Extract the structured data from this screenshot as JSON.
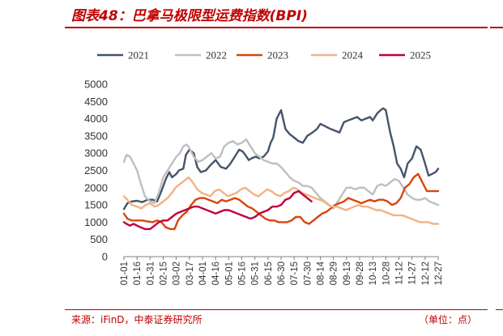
{
  "figure": {
    "title": "图表48：巴拿马极限型运费指数(BPI)",
    "source": "来源：iFinD，中泰证券研究所",
    "unit": "（单位：点）"
  },
  "chart_data": {
    "type": "line",
    "title": "",
    "xlabel": "",
    "ylabel": "",
    "ylim": [
      0,
      5000
    ],
    "yticks": [
      0,
      500,
      1000,
      1500,
      2000,
      2500,
      3000,
      3500,
      4000,
      4500,
      5000
    ],
    "grid": false,
    "legend_position": "top",
    "x_ticks": [
      "01-01",
      "01-16",
      "01-31",
      "02-15",
      "03-02",
      "03-17",
      "04-01",
      "04-16",
      "05-01",
      "05-16",
      "05-31",
      "06-15",
      "06-30",
      "07-15",
      "07-30",
      "08-14",
      "08-29",
      "09-13",
      "09-28",
      "10-13",
      "10-28",
      "11-12",
      "11-27",
      "12-12",
      "12-27"
    ],
    "series": [
      {
        "name": "2021",
        "color": "#44546a",
        "x": [
          "01-01",
          "01-05",
          "01-10",
          "01-16",
          "01-22",
          "01-28",
          "02-03",
          "02-08",
          "02-13",
          "02-18",
          "02-22",
          "02-25",
          "03-02",
          "03-05",
          "03-10",
          "03-13",
          "03-17",
          "03-22",
          "03-26",
          "03-30",
          "04-05",
          "04-10",
          "04-16",
          "04-22",
          "04-28",
          "05-03",
          "05-08",
          "05-13",
          "05-17",
          "05-20",
          "05-24",
          "05-27",
          "06-01",
          "06-05",
          "06-10",
          "06-15",
          "06-18",
          "06-21",
          "06-25",
          "06-30",
          "07-05",
          "07-10",
          "07-15",
          "07-20",
          "07-25",
          "07-30",
          "08-05",
          "08-10",
          "08-14",
          "08-18",
          "08-22",
          "08-26",
          "08-31",
          "09-05",
          "09-10",
          "09-15",
          "09-20",
          "09-25",
          "09-30",
          "10-05",
          "10-10",
          "10-13",
          "10-18",
          "10-22",
          "10-25",
          "10-28",
          "11-02",
          "11-06",
          "11-10",
          "11-14",
          "11-18",
          "11-22",
          "11-27",
          "12-02",
          "12-07",
          "12-12",
          "12-16",
          "12-20",
          "12-24",
          "12-27"
        ],
        "values": [
          1380,
          1550,
          1600,
          1620,
          1580,
          1650,
          1650,
          1600,
          1900,
          2250,
          2450,
          2300,
          2400,
          2500,
          2550,
          2950,
          3100,
          3000,
          2600,
          2450,
          2500,
          2650,
          2800,
          2600,
          2550,
          2700,
          2900,
          3100,
          3050,
          2950,
          2800,
          2850,
          2900,
          2850,
          2900,
          3050,
          3300,
          3450,
          4000,
          4250,
          3700,
          3550,
          3450,
          3350,
          3300,
          3500,
          3600,
          3700,
          3850,
          3800,
          3750,
          3700,
          3650,
          3600,
          3900,
          3950,
          4000,
          4050,
          3950,
          4000,
          4050,
          3950,
          4150,
          4250,
          4300,
          4250,
          3600,
          3200,
          2700,
          2550,
          2300,
          2700,
          2850,
          3200,
          3100,
          2700,
          2350,
          2400,
          2450,
          2550
        ]
      },
      {
        "name": "2022",
        "color": "#bfbfbf",
        "x": [
          "01-01",
          "01-04",
          "01-08",
          "01-12",
          "01-16",
          "01-20",
          "01-25",
          "01-31",
          "02-05",
          "02-10",
          "02-15",
          "02-20",
          "02-25",
          "03-02",
          "03-06",
          "03-10",
          "03-14",
          "03-17",
          "03-22",
          "03-27",
          "04-01",
          "04-06",
          "04-11",
          "04-16",
          "04-21",
          "04-26",
          "05-01",
          "05-06",
          "05-11",
          "05-16",
          "05-21",
          "05-26",
          "05-31",
          "06-05",
          "06-10",
          "06-15",
          "06-20",
          "06-25",
          "06-30",
          "07-05",
          "07-10",
          "07-15",
          "07-20",
          "07-25",
          "07-30",
          "08-04",
          "08-09",
          "08-14",
          "08-19",
          "08-24",
          "08-29",
          "09-03",
          "09-08",
          "09-13",
          "09-18",
          "09-23",
          "09-28",
          "10-03",
          "10-08",
          "10-13",
          "10-18",
          "10-23",
          "10-28",
          "11-02",
          "11-07",
          "11-12",
          "11-17",
          "11-22",
          "11-27",
          "12-02",
          "12-07",
          "12-12",
          "12-17",
          "12-22",
          "12-27"
        ],
        "values": [
          2750,
          2950,
          2900,
          2700,
          2500,
          2150,
          1750,
          1600,
          1550,
          1850,
          2300,
          2500,
          2700,
          2900,
          3000,
          3200,
          3250,
          3150,
          2900,
          2750,
          2800,
          2900,
          3000,
          2850,
          2900,
          3200,
          3300,
          3350,
          3250,
          3300,
          3400,
          3200,
          3000,
          2900,
          2800,
          2750,
          2700,
          2700,
          2600,
          2450,
          2300,
          2200,
          2150,
          2050,
          2050,
          2000,
          1850,
          1700,
          1600,
          1500,
          1400,
          1600,
          1800,
          2000,
          2000,
          1950,
          2000,
          2000,
          1900,
          1800,
          2050,
          2100,
          2050,
          2150,
          2250,
          2200,
          2000,
          1800,
          1700,
          1650,
          1650,
          1700,
          1600,
          1550,
          1500
        ]
      },
      {
        "name": "2023",
        "color": "#d9450f",
        "x": [
          "01-01",
          "01-05",
          "01-10",
          "01-16",
          "01-22",
          "01-28",
          "02-03",
          "02-08",
          "02-13",
          "02-18",
          "02-23",
          "02-28",
          "03-04",
          "03-09",
          "03-14",
          "03-19",
          "03-24",
          "03-29",
          "04-03",
          "04-08",
          "04-13",
          "04-18",
          "04-23",
          "04-28",
          "05-03",
          "05-08",
          "05-13",
          "05-18",
          "05-23",
          "05-28",
          "06-02",
          "06-07",
          "06-12",
          "06-17",
          "06-22",
          "06-27",
          "07-02",
          "07-07",
          "07-12",
          "07-17",
          "07-22",
          "07-27",
          "08-01",
          "08-06",
          "08-11",
          "08-16",
          "08-21",
          "08-26",
          "08-31",
          "09-05",
          "09-10",
          "09-15",
          "09-20",
          "09-25",
          "09-30",
          "10-05",
          "10-10",
          "10-15",
          "10-20",
          "10-25",
          "10-30",
          "11-04",
          "11-09",
          "11-14",
          "11-19",
          "11-24",
          "11-29",
          "12-04",
          "12-09",
          "12-14",
          "12-19",
          "12-24",
          "12-27"
        ],
        "values": [
          1250,
          1100,
          1050,
          1050,
          1050,
          1020,
          1000,
          1050,
          1000,
          850,
          800,
          800,
          1050,
          1200,
          1300,
          1500,
          1650,
          1700,
          1700,
          1650,
          1600,
          1550,
          1650,
          1600,
          1650,
          1700,
          1650,
          1550,
          1450,
          1400,
          1300,
          1200,
          1100,
          1050,
          1050,
          1000,
          1000,
          1000,
          1050,
          1150,
          1150,
          1000,
          950,
          1050,
          1150,
          1250,
          1300,
          1400,
          1500,
          1550,
          1600,
          1700,
          1650,
          1600,
          1550,
          1600,
          1650,
          1600,
          1650,
          1650,
          1600,
          1500,
          1550,
          1700,
          2000,
          2100,
          2300,
          2400,
          2150,
          1900,
          1900,
          1900,
          1900
        ]
      },
      {
        "name": "2024",
        "color": "#f4b183",
        "x": [
          "01-01",
          "01-05",
          "01-10",
          "01-16",
          "01-21",
          "01-26",
          "01-31",
          "02-05",
          "02-10",
          "02-15",
          "02-20",
          "02-25",
          "03-01",
          "03-06",
          "03-11",
          "03-16",
          "03-21",
          "03-26",
          "03-31",
          "04-05",
          "04-10",
          "04-15",
          "04-20",
          "04-25",
          "04-30",
          "05-05",
          "05-10",
          "05-15",
          "05-20",
          "05-25",
          "05-30",
          "06-04",
          "06-09",
          "06-14",
          "06-19",
          "06-24",
          "06-29",
          "07-04",
          "07-09",
          "07-14",
          "07-19",
          "07-24",
          "07-29",
          "08-03",
          "08-08",
          "08-13",
          "08-18",
          "08-23",
          "08-28",
          "09-02",
          "09-07",
          "09-12",
          "09-17",
          "09-22",
          "09-27",
          "10-02",
          "10-07",
          "10-12",
          "10-17",
          "10-22",
          "10-27",
          "11-01",
          "11-06",
          "11-11",
          "11-16",
          "11-21",
          "11-26",
          "12-01",
          "12-06",
          "12-11",
          "12-16",
          "12-21",
          "12-27"
        ],
        "values": [
          1750,
          1650,
          1500,
          1450,
          1400,
          1500,
          1550,
          1450,
          1500,
          1600,
          1700,
          1850,
          2000,
          2100,
          2200,
          2300,
          2150,
          1950,
          1850,
          1800,
          1750,
          1900,
          1950,
          1850,
          1750,
          1800,
          1850,
          1950,
          2000,
          1900,
          1800,
          1750,
          1850,
          1950,
          1900,
          1800,
          1750,
          1850,
          1900,
          2000,
          1950,
          1850,
          1800,
          1750,
          1700,
          1650,
          1600,
          1500,
          1450,
          1450,
          1400,
          1350,
          1400,
          1450,
          1500,
          1450,
          1450,
          1400,
          1350,
          1350,
          1300,
          1250,
          1200,
          1200,
          1200,
          1150,
          1100,
          1050,
          1000,
          1000,
          1000,
          950,
          950
        ]
      },
      {
        "name": "2025",
        "color": "#c0003c",
        "x": [
          "01-01",
          "01-04",
          "01-08",
          "01-12",
          "01-16",
          "01-20",
          "01-25",
          "01-31",
          "02-05",
          "02-10",
          "02-15",
          "02-20",
          "02-25",
          "03-02",
          "03-07",
          "03-12",
          "03-17",
          "03-22",
          "03-27",
          "04-01",
          "04-06",
          "04-11",
          "04-16",
          "04-21",
          "04-26",
          "05-01",
          "05-06",
          "05-11",
          "05-16",
          "05-21",
          "05-26",
          "05-31",
          "06-05",
          "06-10",
          "06-15",
          "06-20",
          "06-25",
          "06-30",
          "07-05",
          "07-10",
          "07-15",
          "07-20",
          "07-25",
          "07-30",
          "08-04"
        ],
        "values": [
          1000,
          950,
          900,
          950,
          900,
          850,
          800,
          800,
          900,
          1000,
          1050,
          1050,
          1150,
          1250,
          1300,
          1350,
          1400,
          1450,
          1450,
          1400,
          1350,
          1300,
          1250,
          1300,
          1350,
          1350,
          1300,
          1250,
          1200,
          1150,
          1100,
          1150,
          1250,
          1300,
          1350,
          1450,
          1450,
          1500,
          1650,
          1700,
          1850,
          1900,
          1800,
          1700,
          1600
        ]
      }
    ]
  }
}
